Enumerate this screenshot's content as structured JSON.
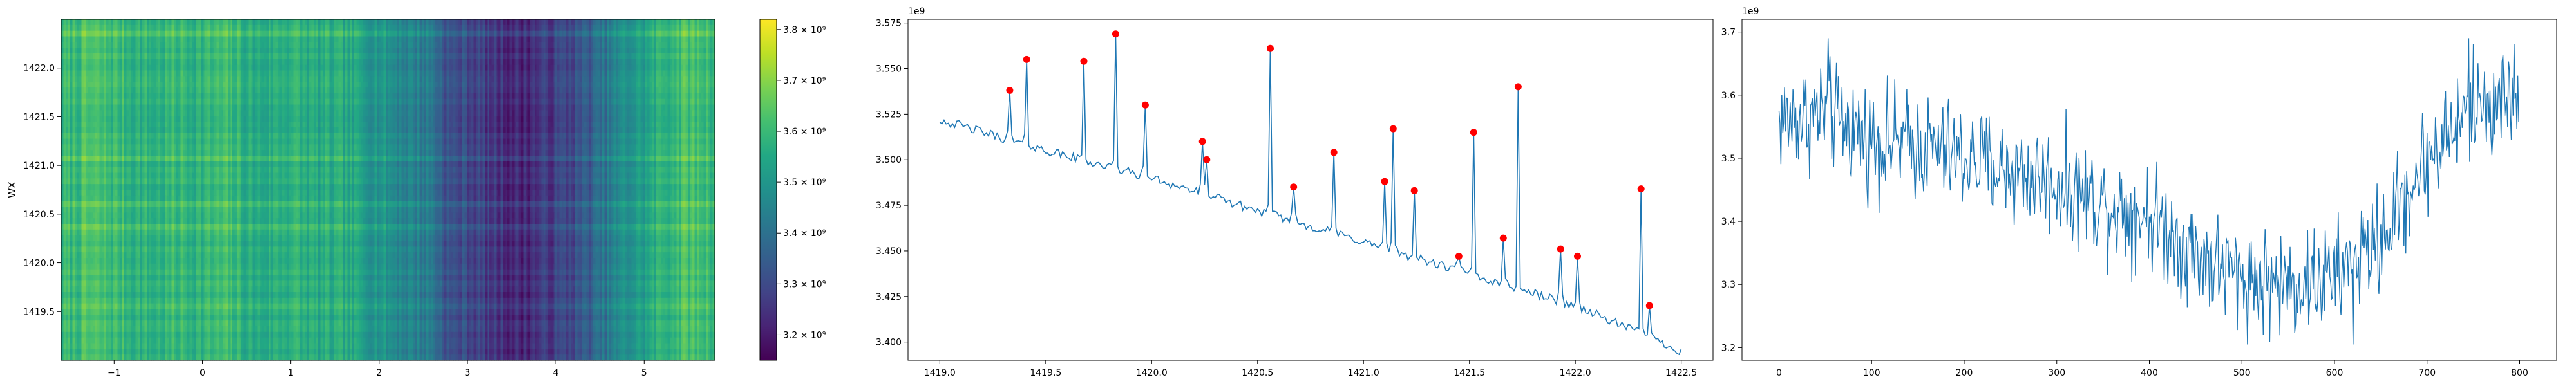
{
  "chart_data": [
    {
      "type": "heatmap",
      "ylabel": "WX",
      "colormap": "viridis",
      "xlim": [
        -1.6,
        5.8
      ],
      "ylim": [
        1419.0,
        1422.5
      ],
      "x_ticks": [
        -1,
        0,
        1,
        2,
        3,
        4,
        5
      ],
      "y_ticks": [
        1419.5,
        1420.0,
        1420.5,
        1421.0,
        1421.5,
        1422.0
      ],
      "column_profile": [
        [
          -1.6,
          3.58
        ],
        [
          -1.3,
          3.62
        ],
        [
          -1.0,
          3.6
        ],
        [
          -0.6,
          3.57
        ],
        [
          -0.3,
          3.59
        ],
        [
          0.0,
          3.58
        ],
        [
          0.3,
          3.6
        ],
        [
          0.6,
          3.55
        ],
        [
          1.0,
          3.58
        ],
        [
          1.3,
          3.55
        ],
        [
          1.6,
          3.55
        ],
        [
          2.0,
          3.5
        ],
        [
          2.3,
          3.45
        ],
        [
          2.6,
          3.42
        ],
        [
          2.8,
          3.3
        ],
        [
          3.0,
          3.3
        ],
        [
          3.3,
          3.25
        ],
        [
          3.6,
          3.22
        ],
        [
          3.9,
          3.26
        ],
        [
          4.2,
          3.3
        ],
        [
          4.4,
          3.35
        ],
        [
          4.6,
          3.42
        ],
        [
          4.8,
          3.48
        ],
        [
          5.0,
          3.52
        ],
        [
          5.2,
          3.58
        ],
        [
          5.5,
          3.62
        ],
        [
          5.8,
          3.6
        ]
      ],
      "colorbar": {
        "range": [
          3.15,
          3.82
        ],
        "ticks": [
          {
            "value": 3.2,
            "label": "3.2 × 10⁹"
          },
          {
            "value": 3.3,
            "label": "3.3 × 10⁹"
          },
          {
            "value": 3.4,
            "label": "3.4 × 10⁹"
          },
          {
            "value": 3.5,
            "label": "3.5 × 10⁹"
          },
          {
            "value": 3.6,
            "label": "3.6 × 10⁹"
          },
          {
            "value": 3.7,
            "label": "3.7 × 10⁹"
          },
          {
            "value": 3.8,
            "label": "3.8 × 10⁹"
          }
        ]
      }
    },
    {
      "type": "line",
      "offset_text": "1e9",
      "xlim": [
        1418.85,
        1422.65
      ],
      "ylim": [
        3.39,
        3.577
      ],
      "x_ticks": [
        1419.0,
        1419.5,
        1420.0,
        1420.5,
        1421.0,
        1421.5,
        1422.0,
        1422.5
      ],
      "y_ticks": [
        3.4,
        3.425,
        3.45,
        3.475,
        3.5,
        3.525,
        3.55,
        3.575
      ],
      "series": [
        {
          "color": "#1f77b4",
          "baseline": [
            [
              1419.0,
              3.522
            ],
            [
              1419.5,
              3.505
            ],
            [
              1420.0,
              3.49
            ],
            [
              1420.5,
              3.472
            ],
            [
              1421.0,
              3.455
            ],
            [
              1421.5,
              3.437
            ],
            [
              1422.0,
              3.42
            ],
            [
              1422.5,
              3.395
            ]
          ],
          "peaks": [
            [
              1419.33,
              3.538
            ],
            [
              1419.41,
              3.555
            ],
            [
              1419.68,
              3.554
            ],
            [
              1419.83,
              3.569
            ],
            [
              1419.97,
              3.53
            ],
            [
              1420.24,
              3.51
            ],
            [
              1420.26,
              3.5
            ],
            [
              1420.56,
              3.561
            ],
            [
              1420.67,
              3.485
            ],
            [
              1420.86,
              3.504
            ],
            [
              1421.1,
              3.488
            ],
            [
              1421.14,
              3.517
            ],
            [
              1421.24,
              3.483
            ],
            [
              1421.45,
              3.447
            ],
            [
              1421.52,
              3.515
            ],
            [
              1421.66,
              3.457
            ],
            [
              1421.73,
              3.54
            ],
            [
              1421.93,
              3.451
            ],
            [
              1422.01,
              3.447
            ],
            [
              1422.31,
              3.484
            ],
            [
              1422.35,
              3.42
            ]
          ]
        }
      ],
      "markers": {
        "color": "#ff0000"
      }
    },
    {
      "type": "line",
      "offset_text": "1e9",
      "xlim": [
        -40,
        840
      ],
      "ylim": [
        3.18,
        3.72
      ],
      "x_ticks": [
        0,
        100,
        200,
        300,
        400,
        500,
        600,
        700,
        800
      ],
      "y_ticks": [
        3.2,
        3.3,
        3.4,
        3.5,
        3.6,
        3.7
      ],
      "series": [
        {
          "color": "#1f77b4",
          "n_points": 800,
          "trend": [
            [
              0,
              3.56
            ],
            [
              50,
              3.57
            ],
            [
              100,
              3.53
            ],
            [
              150,
              3.52
            ],
            [
              200,
              3.5
            ],
            [
              250,
              3.48
            ],
            [
              300,
              3.46
            ],
            [
              350,
              3.43
            ],
            [
              400,
              3.41
            ],
            [
              450,
              3.35
            ],
            [
              500,
              3.31
            ],
            [
              550,
              3.3
            ],
            [
              600,
              3.31
            ],
            [
              650,
              3.37
            ],
            [
              700,
              3.5
            ],
            [
              750,
              3.58
            ],
            [
              800,
              3.6
            ]
          ],
          "y_extremes": {
            "min": 3.205,
            "max": 3.69
          }
        }
      ]
    }
  ]
}
